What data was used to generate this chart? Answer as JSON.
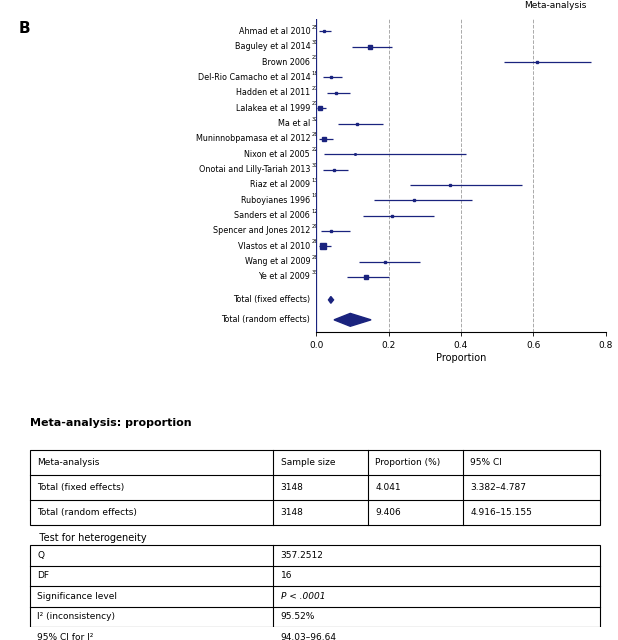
{
  "panel_label": "B",
  "meta_analysis_label": "Meta-analysis",
  "studies": [
    {
      "name": "Ahmad et al 2010",
      "sup": "25",
      "proportion": 0.021,
      "ci_low": 0.007,
      "ci_high": 0.04,
      "weight": 2.0
    },
    {
      "name": "Baguley et al 2014",
      "sup": "31",
      "proportion": 0.148,
      "ci_low": 0.098,
      "ci_high": 0.21,
      "weight": 3.5
    },
    {
      "name": "Brown 2006",
      "sup": "23",
      "proportion": 0.61,
      "ci_low": 0.52,
      "ci_high": 0.76,
      "weight": 2.5
    },
    {
      "name": "Del-Rio Camacho et al 2014",
      "sup": "18",
      "proportion": 0.04,
      "ci_low": 0.018,
      "ci_high": 0.072,
      "weight": 3.0
    },
    {
      "name": "Hadden et al 2011",
      "sup": "27",
      "proportion": 0.055,
      "ci_low": 0.03,
      "ci_high": 0.092,
      "weight": 2.5
    },
    {
      "name": "Lalakea et al 1999",
      "sup": "21",
      "proportion": 0.01,
      "ci_low": 0.002,
      "ci_high": 0.028,
      "weight": 5.0
    },
    {
      "name": "Ma et al",
      "sup": "32",
      "proportion": 0.112,
      "ci_low": 0.06,
      "ci_high": 0.185,
      "weight": 3.0
    },
    {
      "name": "Muninnobpamasa et al 2012",
      "sup": "28",
      "proportion": 0.022,
      "ci_low": 0.008,
      "ci_high": 0.045,
      "weight": 4.5
    },
    {
      "name": "Nixon et al 2005",
      "sup": "22",
      "proportion": 0.108,
      "ci_low": 0.022,
      "ci_high": 0.415,
      "weight": 1.5
    },
    {
      "name": "Onotai and Lilly-Tariah 2013",
      "sup": "30",
      "proportion": 0.048,
      "ci_low": 0.018,
      "ci_high": 0.088,
      "weight": 2.5
    },
    {
      "name": "Riaz et al 2009",
      "sup": "13",
      "proportion": 0.37,
      "ci_low": 0.26,
      "ci_high": 0.57,
      "weight": 2.0
    },
    {
      "name": "Ruboyianes 1996",
      "sup": "19",
      "proportion": 0.27,
      "ci_low": 0.16,
      "ci_high": 0.43,
      "weight": 2.5
    },
    {
      "name": "Sanders et al 2006",
      "sup": "12",
      "proportion": 0.21,
      "ci_low": 0.128,
      "ci_high": 0.325,
      "weight": 2.5
    },
    {
      "name": "Spencer and Jones 2012",
      "sup": "29",
      "proportion": 0.042,
      "ci_low": 0.012,
      "ci_high": 0.092,
      "weight": 2.5
    },
    {
      "name": "Vlastos et al 2010",
      "sup": "26",
      "proportion": 0.02,
      "ci_low": 0.008,
      "ci_high": 0.04,
      "weight": 5.5
    },
    {
      "name": "Wang et al 2009",
      "sup": "28",
      "proportion": 0.19,
      "ci_low": 0.118,
      "ci_high": 0.288,
      "weight": 3.0
    },
    {
      "name": "Ye et al 2009",
      "sup": "33",
      "proportion": 0.138,
      "ci_low": 0.085,
      "ci_high": 0.2,
      "weight": 3.5
    }
  ],
  "fixed_effects": {
    "proportion": 0.04041,
    "ci_low": 0.03382,
    "ci_high": 0.04787
  },
  "random_effects": {
    "proportion": 0.09406,
    "ci_low": 0.04916,
    "ci_high": 0.15155
  },
  "xlim": [
    0.0,
    0.8
  ],
  "xticks": [
    0.0,
    0.2,
    0.4,
    0.6,
    0.8
  ],
  "xtick_labels": [
    "0.0",
    "0.2",
    "0.4",
    "0.6",
    "0.8"
  ],
  "xlabel": "Proportion",
  "color": "#1a237e",
  "vline_color": "#aaaaaa",
  "vlines": [
    0.2,
    0.4,
    0.6
  ],
  "table_title": "Meta-analysis: proportion",
  "table_headers": [
    "Meta-analysis",
    "Sample size",
    "Proportion (%)",
    "95% CI"
  ],
  "table_rows": [
    [
      "Total (fixed effects)",
      "3148",
      "4.041",
      "3.382–4.787"
    ],
    [
      "Total (random effects)",
      "3148",
      "9.406",
      "4.916–15.155"
    ]
  ],
  "het_title": "   Test for heterogeneity",
  "het_rows": [
    [
      "Q",
      "357.2512"
    ],
    [
      "DF",
      "16"
    ],
    [
      "Significance level",
      "P < .0001"
    ],
    [
      "I² (inconsistency)",
      "95.52%"
    ],
    [
      "95% CI for I²",
      "94.03–96.64"
    ]
  ]
}
